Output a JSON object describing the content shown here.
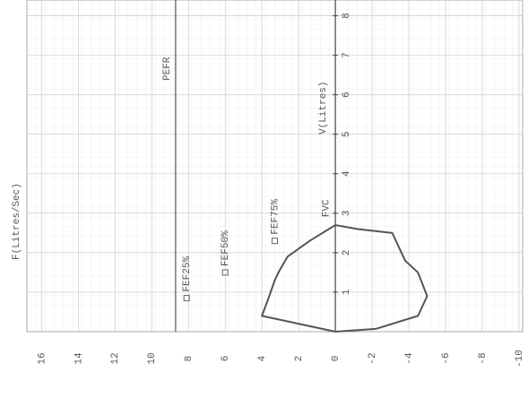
{
  "chart_data": {
    "type": "line",
    "y_label": "F(Litres/Sec)",
    "x_label": "V(Litres)",
    "x": [
      0,
      0.4,
      0.9,
      1.3,
      1.5,
      1.9,
      2.3,
      2.7,
      2.6,
      2.5,
      1.8,
      1.5,
      0.9,
      0.4,
      0.07,
      0
    ],
    "series": [
      {
        "color": "#555555",
        "values": [
          0,
          4,
          3.6,
          3.3,
          3.1,
          2.6,
          1.4,
          0,
          -1.2,
          -3.1,
          -3.8,
          -4.5,
          -5,
          -4.5,
          -2.2,
          0
        ]
      }
    ],
    "xlim": [
      0,
      8.4
    ],
    "xticks": [
      1,
      2,
      3,
      4,
      5,
      6,
      7,
      8
    ],
    "ylim": [
      -10.2,
      16.8
    ],
    "yticks": [
      16,
      14,
      12,
      10,
      8,
      6,
      4,
      2,
      0,
      -2,
      -4,
      -6,
      -8,
      -10
    ],
    "grid": true,
    "reference_lines": [
      {
        "label": "PEFR",
        "y": 8.7
      }
    ],
    "annotations": [
      {
        "label": "FEF25%",
        "x": 0.85,
        "y": 8.1,
        "marker": "square"
      },
      {
        "label": "FEF50%",
        "x": 1.5,
        "y": 6,
        "marker": "square"
      },
      {
        "label": "FEF75%",
        "x": 2.3,
        "y": 3.3,
        "marker": "square"
      },
      {
        "label": "FVC",
        "x": 2.9,
        "y": 0.5
      }
    ]
  }
}
